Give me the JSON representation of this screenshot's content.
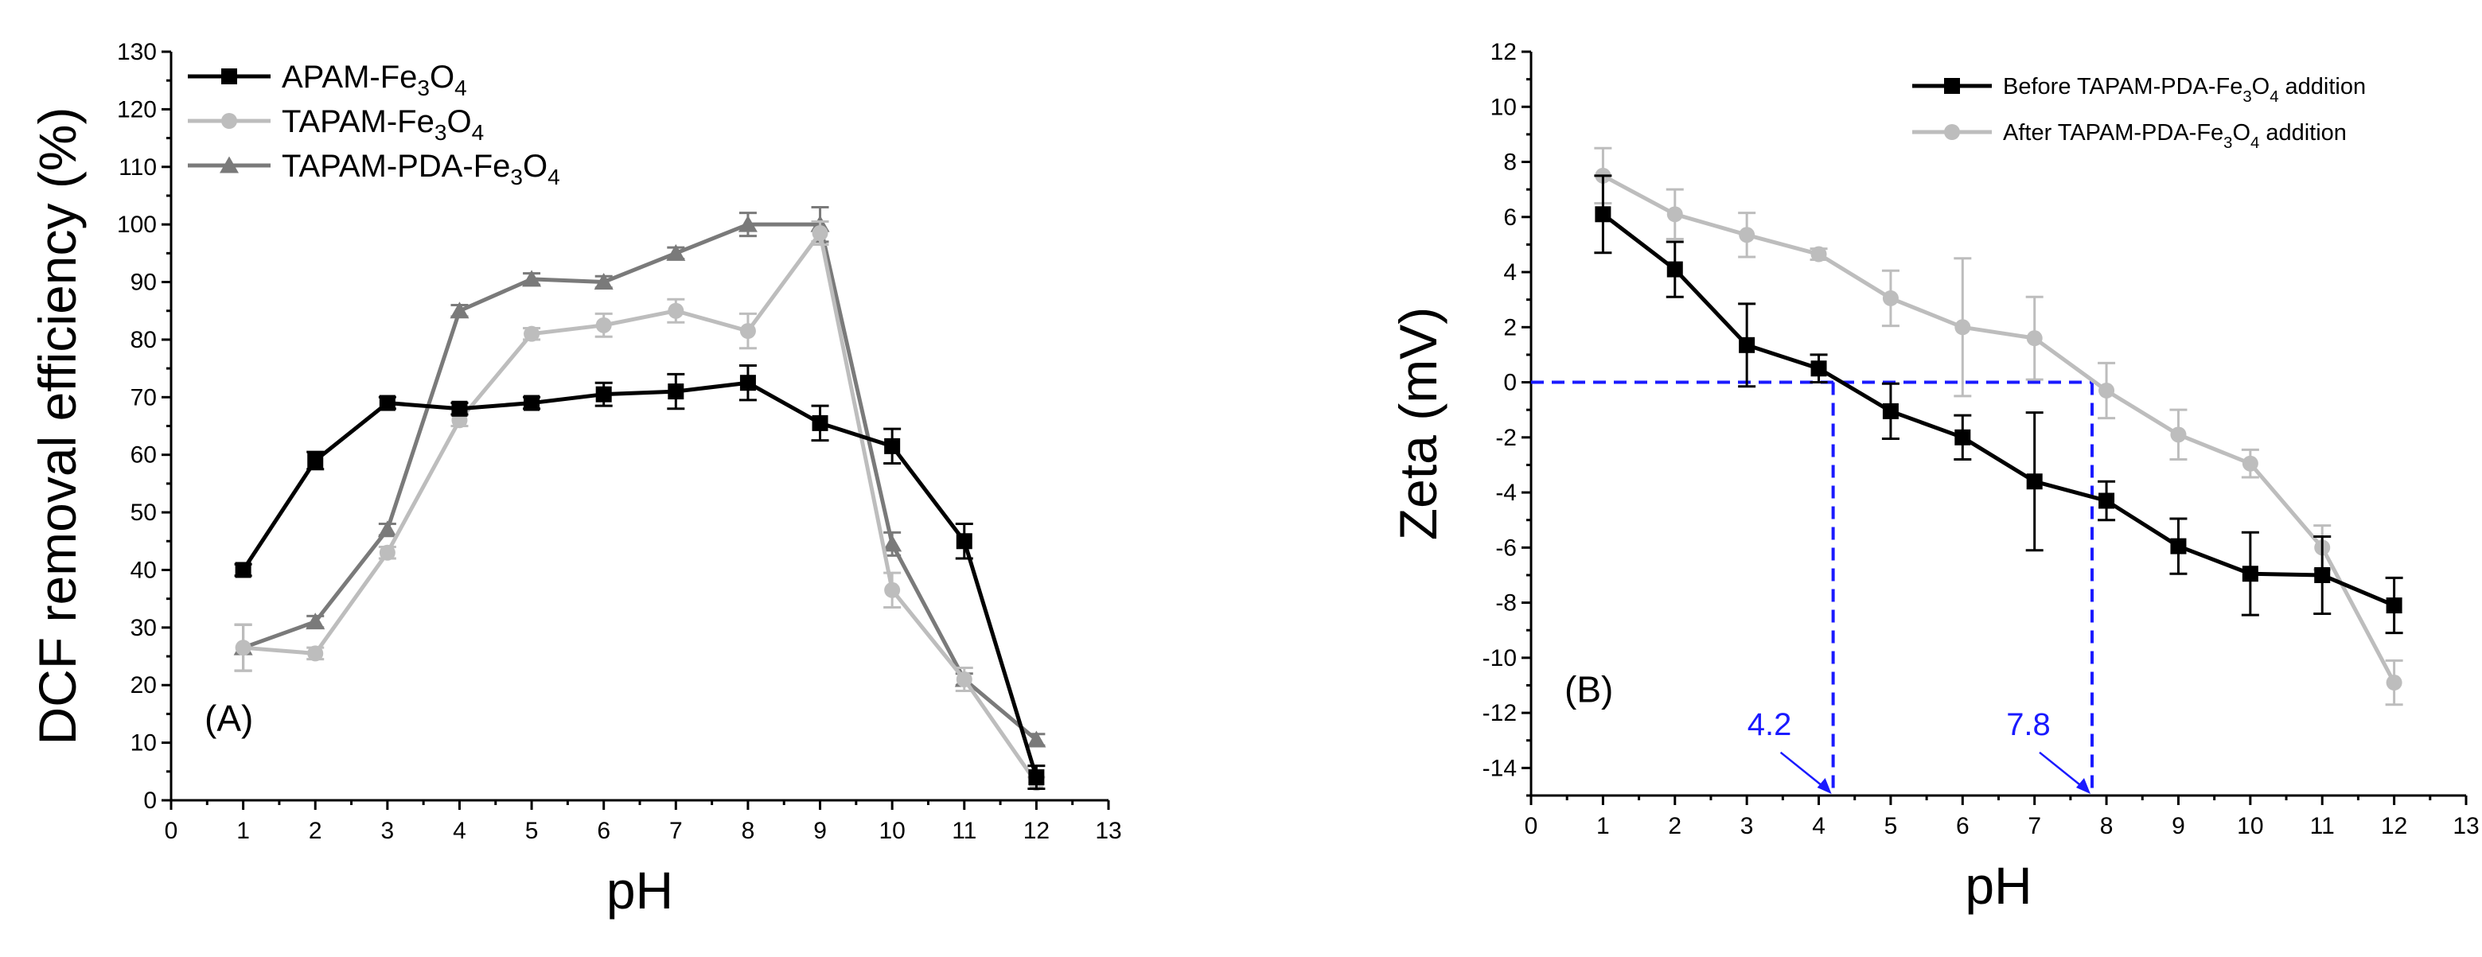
{
  "colors": {
    "black": "#000000",
    "light_gray": "#bdbdbd",
    "mid_gray": "#7a7a7a",
    "guide_blue": "#1a1aff"
  },
  "chart_data": [
    {
      "type": "line",
      "panel_label": "(A)",
      "xlabel": "pH",
      "ylabel": "DCF removal efficiency (%)",
      "xlim": [
        0,
        13
      ],
      "ylim": [
        0,
        130
      ],
      "xticks": [
        0,
        1,
        2,
        3,
        4,
        5,
        6,
        7,
        8,
        9,
        10,
        11,
        12,
        13
      ],
      "yticks": [
        0,
        10,
        20,
        30,
        40,
        50,
        60,
        70,
        80,
        90,
        100,
        110,
        120,
        130
      ],
      "grid": false,
      "legend_position": "top-left",
      "series": [
        {
          "name": "APAM-Fe3O4",
          "label_main": "APAM-Fe",
          "label_sub": "3",
          "label_tail": "O",
          "label_sub2": "4",
          "color": "#000000",
          "marker": "square",
          "x": [
            1,
            2,
            3,
            4,
            5,
            6,
            7,
            8,
            9,
            10,
            11,
            12
          ],
          "y": [
            40,
            59,
            69,
            68,
            69,
            70.5,
            71,
            72.5,
            65.5,
            61.5,
            45,
            4
          ],
          "err": [
            1,
            1.5,
            1,
            1,
            1,
            2,
            3,
            3,
            3,
            3,
            3,
            2
          ]
        },
        {
          "name": "TAPAM-Fe3O4",
          "label_main": "TAPAM-Fe",
          "label_sub": "3",
          "label_tail": "O",
          "label_sub2": "4",
          "color": "#bdbdbd",
          "marker": "circle",
          "x": [
            1,
            2,
            3,
            4,
            5,
            6,
            7,
            8,
            9,
            10,
            11,
            12
          ],
          "y": [
            26.5,
            25.5,
            43,
            66,
            81,
            82.5,
            85,
            81.5,
            98.5,
            36.5,
            21,
            3
          ],
          "err": [
            4,
            1,
            1,
            1,
            1,
            2,
            2,
            3,
            2,
            3,
            2,
            1
          ]
        },
        {
          "name": "TAPAM-PDA-Fe3O4",
          "label_main": "TAPAM-PDA-Fe",
          "label_sub": "3",
          "label_tail": "O",
          "label_sub2": "4",
          "color": "#7a7a7a",
          "marker": "triangle",
          "x": [
            1,
            2,
            3,
            4,
            5,
            6,
            7,
            8,
            9,
            10,
            11,
            12
          ],
          "y": [
            26.5,
            31,
            47,
            85,
            90.5,
            90,
            95,
            100,
            100,
            44.5,
            21,
            10.5
          ],
          "err": [
            4,
            1,
            1,
            1,
            1,
            1,
            1,
            2,
            3,
            2,
            1,
            1
          ]
        }
      ]
    },
    {
      "type": "line",
      "panel_label": "(B)",
      "xlabel": "pH",
      "ylabel": "Zeta (mV)",
      "xlim": [
        0,
        13
      ],
      "ylim": [
        -15,
        12
      ],
      "xticks": [
        0,
        1,
        2,
        3,
        4,
        5,
        6,
        7,
        8,
        9,
        10,
        11,
        12,
        13
      ],
      "yticks": [
        -14,
        -12,
        -10,
        -8,
        -6,
        -4,
        -2,
        0,
        2,
        4,
        6,
        8,
        10,
        12
      ],
      "grid": false,
      "legend_position": "top-right",
      "annotations": [
        {
          "text": "4.2",
          "x": 4.2
        },
        {
          "text": "7.8",
          "x": 7.8
        }
      ],
      "series": [
        {
          "name": "Before TAPAM-PDA-Fe3O4 addition",
          "label_main": "Before TAPAM-PDA-Fe",
          "label_sub": "3",
          "label_tail": "O",
          "label_sub2": "4",
          "label_end": " addition",
          "color": "#000000",
          "marker": "square",
          "x": [
            1,
            2,
            3,
            4,
            5,
            6,
            7,
            8,
            9,
            10,
            11,
            12
          ],
          "y": [
            6.1,
            4.1,
            1.35,
            0.5,
            -1.05,
            -2,
            -3.6,
            -4.3,
            -5.95,
            -6.95,
            -7,
            -8.1
          ],
          "err": [
            1.4,
            1,
            1.5,
            0.5,
            1,
            0.8,
            2.5,
            0.7,
            1,
            1.5,
            1.4,
            1
          ]
        },
        {
          "name": "After TAPAM-PDA-Fe3O4 addition",
          "label_main": "After TAPAM-PDA-Fe",
          "label_sub": "3",
          "label_tail": "O",
          "label_sub2": "4",
          "label_end": " addition",
          "color": "#bdbdbd",
          "marker": "circle",
          "x": [
            1,
            2,
            3,
            4,
            5,
            6,
            7,
            8,
            9,
            10,
            11,
            12
          ],
          "y": [
            7.5,
            6.1,
            5.35,
            4.65,
            3.05,
            2,
            1.6,
            -0.3,
            -1.9,
            -2.95,
            -6,
            -10.9
          ],
          "err": [
            1,
            0.9,
            0.8,
            0.2,
            1,
            2.5,
            1.5,
            1,
            0.9,
            0.5,
            0.8,
            0.8
          ]
        }
      ]
    }
  ]
}
